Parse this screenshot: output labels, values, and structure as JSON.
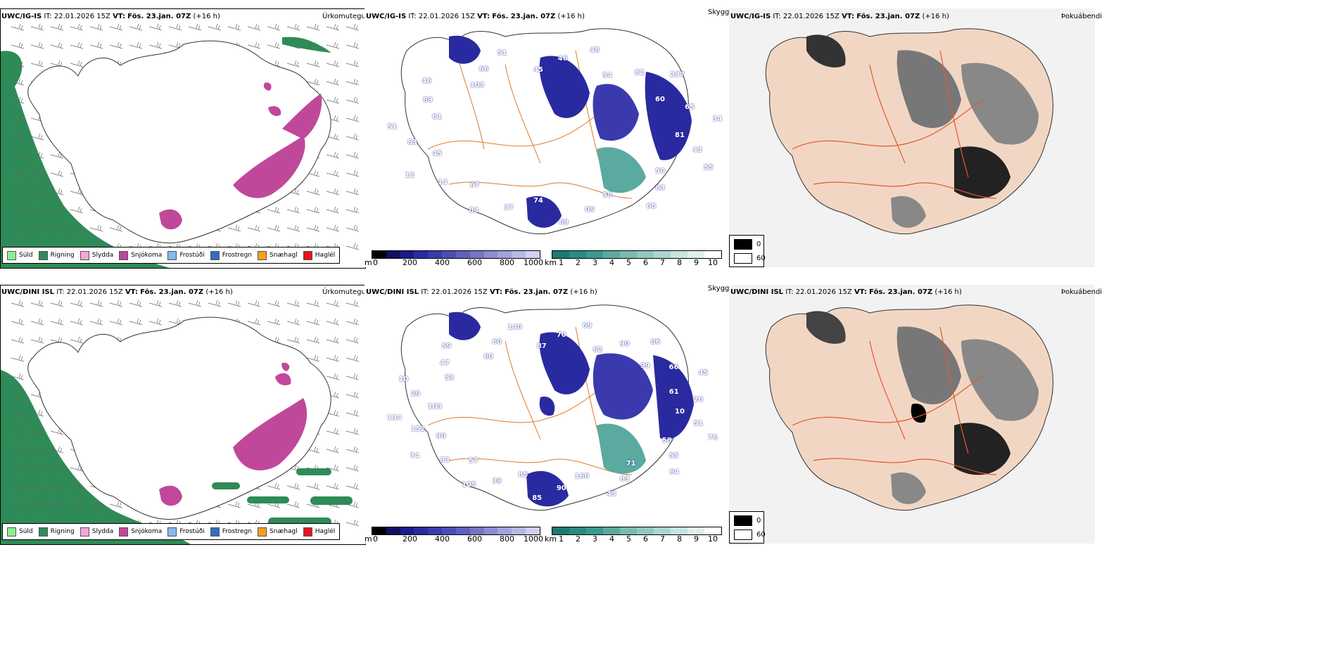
{
  "rows": [
    {
      "model": "UWC/IG-IS",
      "it_label": "IT:",
      "it_value": "22.01.2026 15Z",
      "vt_label": "VT:",
      "vt_value": "Fös. 23.jan. 07Z",
      "lead": "(+16 h)"
    },
    {
      "model": "UWC/DINI ISL",
      "it_label": "IT:",
      "it_value": "22.01.2026 15Z",
      "vt_label": "VT:",
      "vt_value": "Fös. 23.jan. 07Z",
      "lead": "(+16 h)"
    }
  ],
  "panel_titles": {
    "precip": "Úrkomutegund",
    "visibility": "Skyggni",
    "fog": "Þokuábendi"
  },
  "precip_legend": [
    {
      "label": "Súld",
      "color": "#90ee90"
    },
    {
      "label": "Rigning",
      "color": "#2e8b57"
    },
    {
      "label": "Slydda",
      "color": "#f4a6d7"
    },
    {
      "label": "Snjókoma",
      "color": "#c0489a"
    },
    {
      "label": "Frostúði",
      "color": "#87b8ee"
    },
    {
      "label": "Frostregn",
      "color": "#2f6fbf"
    },
    {
      "label": "Snæhagl",
      "color": "#f4a020"
    },
    {
      "label": "Haglél",
      "color": "#e8141c"
    }
  ],
  "height_bar": {
    "unit": "m",
    "ticks": [
      "0",
      "200",
      "400",
      "600",
      "800",
      "1000"
    ],
    "colors": [
      "#000000",
      "#101060",
      "#1a1a8c",
      "#2a2aa0",
      "#3a3aae",
      "#4c4cb8",
      "#6060c0",
      "#7676c8",
      "#8c8cd2",
      "#a2a2dc",
      "#b8b8e6",
      "#d0d0f0"
    ]
  },
  "vis_bar": {
    "unit": "km",
    "ticks": [
      "1",
      "2",
      "3",
      "4",
      "5",
      "6",
      "7",
      "8",
      "9",
      "10"
    ],
    "colors": [
      "#1a7a70",
      "#2a8a80",
      "#3a9a90",
      "#5aaaa0",
      "#7abab0",
      "#92c8c0",
      "#acd6d0",
      "#c6e4e0",
      "#deefec",
      "#ffffff"
    ]
  },
  "fog_legend": [
    {
      "label": "0",
      "color": "#000000"
    },
    {
      "label": "60",
      "color": "#ffffff"
    }
  ],
  "vis_numbers_row1": [
    "81",
    "43",
    "55",
    "50",
    "63",
    "68",
    "58",
    "09",
    "69",
    "74",
    "37",
    "83",
    "67",
    "14",
    "12",
    "45",
    "83",
    "51",
    "61",
    "89",
    "46",
    "103",
    "66",
    "51",
    "45",
    "46",
    "48",
    "54",
    "82",
    "237",
    "60",
    "65",
    "34"
  ],
  "vis_numbers_row2": [
    "10",
    "51",
    "76",
    "58",
    "55",
    "64",
    "71",
    "63",
    "43",
    "166",
    "90",
    "85",
    "85",
    "39",
    "105",
    "57",
    "83",
    "74",
    "90",
    "152",
    "134",
    "103",
    "29",
    "10",
    "53",
    "47",
    "59",
    "60",
    "60",
    "140",
    "87",
    "70",
    "69",
    "62",
    "90",
    "86",
    "99",
    "66",
    "45",
    "61",
    "26"
  ]
}
